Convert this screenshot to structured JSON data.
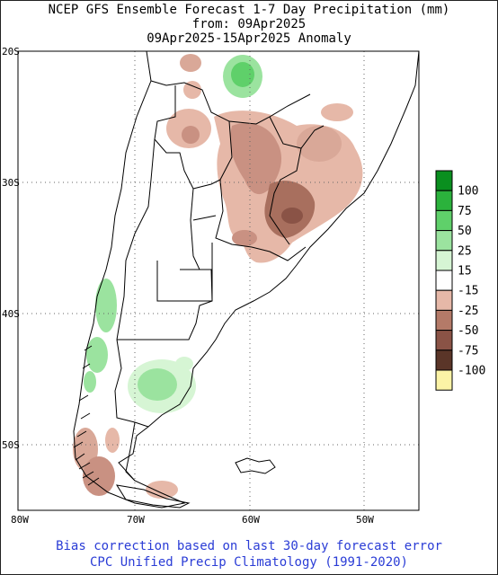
{
  "title": {
    "line1": "NCEP GFS Ensemble Forecast 1-7 Day Precipitation (mm)",
    "line2": "from: 09Apr2025",
    "line3": "09Apr2025-15Apr2025 Anomaly"
  },
  "axes": {
    "lat_labels": [
      "20S",
      "30S",
      "40S",
      "50S"
    ],
    "lon_labels": [
      "80W",
      "70W",
      "60W",
      "50W"
    ]
  },
  "legend": {
    "labels": [
      "100",
      "75",
      "50",
      "25",
      "15",
      "-15",
      "-25",
      "-50",
      "-75",
      "-100"
    ],
    "colors": [
      "#0a8f1f",
      "#2bb23c",
      "#5fd06a",
      "#9be39f",
      "#d6f5d4",
      "#ffffff",
      "#e6b8a8",
      "#b47a68",
      "#8a5346",
      "#5a3528",
      "#fbf3a6"
    ]
  },
  "footer": {
    "line1": "Bias correction based on last 30-day forecast error",
    "line2": "CPC Unified Precip Climatology (1991-2020)"
  }
}
